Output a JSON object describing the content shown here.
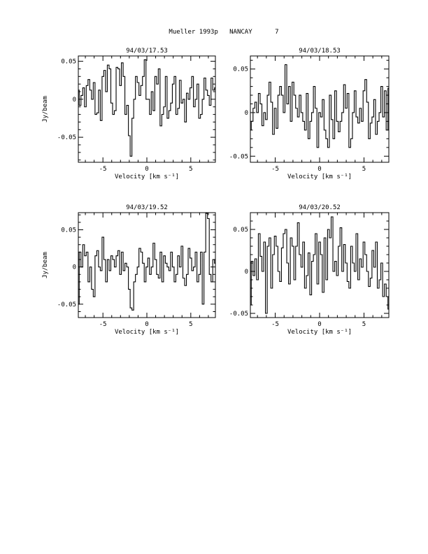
{
  "page_title": "Mueller 1993p   NANCAY      7",
  "chart_data": [
    {
      "type": "line",
      "title": "94/03/17.53",
      "xlabel": "Velocity [km s⁻¹]",
      "ylabel": "Jy/beam",
      "xlim": [
        -7.8,
        7.8
      ],
      "ylim": [
        -0.083,
        0.057
      ],
      "xticks": [
        -5,
        0,
        5
      ],
      "xtick_labels": [
        "-5",
        "0",
        "5"
      ],
      "yticks": [
        0.05,
        0,
        -0.05
      ],
      "ytick_labels": [
        "0.05",
        "0",
        "-0.05"
      ],
      "grid": false,
      "series": [
        {
          "x": [
            -7.8,
            -7.6,
            -7.4,
            -7.2,
            -7.0,
            -6.8,
            -6.6,
            -6.4,
            -6.2,
            -6.0,
            -5.8,
            -5.6,
            -5.4,
            -5.2,
            -5.0,
            -4.8,
            -4.6,
            -4.4,
            -4.2,
            -4.0,
            -3.8,
            -3.6,
            -3.4,
            -3.2,
            -3.0,
            -2.8,
            -2.6,
            -2.4,
            -2.2,
            -2.0,
            -1.8,
            -1.6,
            -1.4,
            -1.2,
            -1.0,
            -0.8,
            -0.6,
            -0.4,
            -0.2,
            0.0,
            0.2,
            0.4,
            0.6,
            0.8,
            1.0,
            1.2,
            1.4,
            1.6,
            1.8,
            2.0,
            2.2,
            2.4,
            2.6,
            2.8,
            3.0,
            3.2,
            3.4,
            3.6,
            3.8,
            4.0,
            4.2,
            4.4,
            4.6,
            4.8,
            5.0,
            5.2,
            5.4,
            5.6,
            5.8,
            6.0,
            6.2,
            6.4,
            6.6,
            6.8,
            7.0,
            7.2,
            7.4,
            7.6,
            7.8
          ],
          "values": [
            0.012,
            -0.008,
            0.005,
            0.015,
            -0.01,
            0.018,
            0.026,
            0.012,
            0.0,
            0.022,
            -0.02,
            -0.018,
            0.012,
            -0.028,
            0.03,
            0.038,
            0.01,
            0.045,
            0.04,
            -0.005,
            -0.02,
            -0.015,
            0.042,
            0.04,
            0.018,
            0.048,
            0.03,
            -0.02,
            -0.008,
            -0.048,
            -0.075,
            -0.025,
            0.0,
            0.03,
            0.022,
            0.005,
            0.018,
            0.03,
            0.052,
            0.0,
            0.0,
            -0.02,
            0.01,
            -0.015,
            0.03,
            0.02,
            0.04,
            -0.035,
            -0.02,
            -0.01,
            0.03,
            -0.025,
            -0.015,
            -0.005,
            0.02,
            0.03,
            -0.02,
            -0.012,
            0.025,
            -0.005,
            0.0,
            -0.03,
            0.008,
            0.0,
            0.015,
            0.03,
            -0.01,
            0.0,
            0.02,
            -0.025,
            -0.02,
            0.0,
            0.028,
            0.012,
            0.005,
            -0.008,
            0.028,
            0.012,
            0.015
          ]
        }
      ]
    },
    {
      "type": "line",
      "title": "94/03/18.53",
      "xlabel": "Velocity [km s⁻¹]",
      "ylabel": "",
      "xlim": [
        -7.8,
        7.8
      ],
      "ylim": [
        -0.057,
        0.065
      ],
      "xticks": [
        -5,
        0,
        5
      ],
      "xtick_labels": [
        "-5",
        "0",
        "5"
      ],
      "yticks": [
        0.05,
        0,
        -0.05
      ],
      "ytick_labels": [
        "0.05",
        "0",
        "-0.05"
      ],
      "grid": false,
      "series": [
        {
          "x": [
            -7.8,
            -7.6,
            -7.4,
            -7.2,
            -7.0,
            -6.8,
            -6.6,
            -6.4,
            -6.2,
            -6.0,
            -5.8,
            -5.6,
            -5.4,
            -5.2,
            -5.0,
            -4.8,
            -4.6,
            -4.4,
            -4.2,
            -4.0,
            -3.8,
            -3.6,
            -3.4,
            -3.2,
            -3.0,
            -2.8,
            -2.6,
            -2.4,
            -2.2,
            -2.0,
            -1.8,
            -1.6,
            -1.4,
            -1.2,
            -1.0,
            -0.8,
            -0.6,
            -0.4,
            -0.2,
            0.0,
            0.2,
            0.4,
            0.6,
            0.8,
            1.0,
            1.2,
            1.4,
            1.6,
            1.8,
            2.0,
            2.2,
            2.4,
            2.6,
            2.8,
            3.0,
            3.2,
            3.4,
            3.6,
            3.8,
            4.0,
            4.2,
            4.4,
            4.6,
            4.8,
            5.0,
            5.2,
            5.4,
            5.6,
            5.8,
            6.0,
            6.2,
            6.4,
            6.6,
            6.8,
            7.0,
            7.2,
            7.4,
            7.6,
            7.8
          ],
          "values": [
            -0.02,
            -0.01,
            0.005,
            0.012,
            0.0,
            0.022,
            0.01,
            -0.015,
            0.0,
            -0.008,
            0.02,
            0.035,
            0.012,
            -0.025,
            0.005,
            -0.018,
            0.02,
            0.03,
            0.02,
            0.0,
            0.055,
            0.01,
            0.03,
            -0.01,
            0.035,
            0.02,
            0.005,
            -0.005,
            0.02,
            0.0,
            -0.01,
            -0.02,
            0.022,
            -0.03,
            -0.01,
            0.0,
            0.03,
            0.005,
            -0.04,
            0.0,
            -0.005,
            0.015,
            -0.02,
            -0.03,
            -0.04,
            0.02,
            -0.008,
            -0.03,
            0.025,
            -0.01,
            -0.022,
            -0.01,
            0.0,
            0.032,
            0.005,
            0.022,
            -0.04,
            -0.03,
            0.0,
            0.025,
            -0.005,
            -0.012,
            0.005,
            -0.01,
            0.025,
            0.038,
            0.012,
            -0.03,
            -0.012,
            -0.005,
            0.015,
            -0.025,
            -0.01,
            0.0,
            0.03,
            -0.005,
            0.025,
            -0.02,
            0.028
          ]
        }
      ]
    },
    {
      "type": "line",
      "title": "94/03/19.52",
      "xlabel": "Velocity [km s⁻¹]",
      "ylabel": "Jy/beam",
      "xlim": [
        -7.8,
        7.8
      ],
      "ylim": [
        -0.068,
        0.073
      ],
      "xticks": [
        -5,
        0,
        5
      ],
      "xtick_labels": [
        "-5",
        "0",
        "5"
      ],
      "yticks": [
        0.05,
        0,
        -0.05
      ],
      "ytick_labels": [
        "0.05",
        "0",
        "-0.05"
      ],
      "grid": false,
      "series": [
        {
          "x": [
            -7.8,
            -7.6,
            -7.4,
            -7.2,
            -7.0,
            -6.8,
            -6.6,
            -6.4,
            -6.2,
            -6.0,
            -5.8,
            -5.6,
            -5.4,
            -5.2,
            -5.0,
            -4.8,
            -4.6,
            -4.4,
            -4.2,
            -4.0,
            -3.8,
            -3.6,
            -3.4,
            -3.2,
            -3.0,
            -2.8,
            -2.6,
            -2.4,
            -2.2,
            -2.0,
            -1.8,
            -1.6,
            -1.4,
            -1.2,
            -1.0,
            -0.8,
            -0.6,
            -0.4,
            -0.2,
            0.0,
            0.2,
            0.4,
            0.6,
            0.8,
            1.0,
            1.2,
            1.4,
            1.6,
            1.8,
            2.0,
            2.2,
            2.4,
            2.6,
            2.8,
            3.0,
            3.2,
            3.4,
            3.6,
            3.8,
            4.0,
            4.2,
            4.4,
            4.6,
            4.8,
            5.0,
            5.2,
            5.4,
            5.6,
            5.8,
            6.0,
            6.2,
            6.4,
            6.6,
            6.8,
            7.0,
            7.2,
            7.4,
            7.6,
            7.8
          ],
          "values": [
            -0.05,
            0.02,
            0.0,
            0.03,
            0.015,
            0.02,
            -0.02,
            0.0,
            -0.03,
            -0.04,
            0.015,
            0.022,
            0.0,
            -0.005,
            0.04,
            0.01,
            -0.02,
            0.01,
            -0.005,
            0.015,
            0.01,
            0.0,
            0.015,
            0.022,
            -0.01,
            0.02,
            -0.005,
            0.005,
            0.0,
            -0.03,
            -0.055,
            -0.058,
            -0.02,
            -0.01,
            0.0,
            0.025,
            0.02,
            0.005,
            -0.02,
            0.0,
            0.012,
            -0.01,
            0.0,
            0.032,
            0.01,
            -0.01,
            -0.015,
            0.02,
            -0.02,
            0.015,
            0.005,
            0.0,
            -0.005,
            0.02,
            0.0,
            -0.02,
            -0.01,
            0.015,
            0.0,
            0.028,
            -0.015,
            -0.025,
            -0.01,
            0.025,
            0.012,
            -0.005,
            0.0,
            0.02,
            -0.02,
            -0.01,
            0.02,
            -0.05,
            0.02,
            0.072,
            0.065,
            -0.01,
            -0.02,
            0.01,
            0.005
          ]
        }
      ]
    },
    {
      "type": "line",
      "title": "94/03/20.52",
      "xlabel": "Velocity [km s⁻¹]",
      "ylabel": "",
      "xlim": [
        -7.8,
        7.8
      ],
      "ylim": [
        -0.055,
        0.07
      ],
      "xticks": [
        -5,
        0,
        5
      ],
      "xtick_labels": [
        "-5",
        "0",
        "5"
      ],
      "yticks": [
        0.05,
        0,
        -0.05
      ],
      "ytick_labels": [
        "0.05",
        "0",
        "-0.05"
      ],
      "grid": false,
      "series": [
        {
          "x": [
            -7.8,
            -7.6,
            -7.4,
            -7.2,
            -7.0,
            -6.8,
            -6.6,
            -6.4,
            -6.2,
            -6.0,
            -5.8,
            -5.6,
            -5.4,
            -5.2,
            -5.0,
            -4.8,
            -4.6,
            -4.4,
            -4.2,
            -4.0,
            -3.8,
            -3.6,
            -3.4,
            -3.2,
            -3.0,
            -2.8,
            -2.6,
            -2.4,
            -2.2,
            -2.0,
            -1.8,
            -1.6,
            -1.4,
            -1.2,
            -1.0,
            -0.8,
            -0.6,
            -0.4,
            -0.2,
            0.0,
            0.2,
            0.4,
            0.6,
            0.8,
            1.0,
            1.2,
            1.4,
            1.6,
            1.8,
            2.0,
            2.2,
            2.4,
            2.6,
            2.8,
            3.0,
            3.2,
            3.4,
            3.6,
            3.8,
            4.0,
            4.2,
            4.4,
            4.6,
            4.8,
            5.0,
            5.2,
            5.4,
            5.6,
            5.8,
            6.0,
            6.2,
            6.4,
            6.6,
            6.8,
            7.0,
            7.2,
            7.4,
            7.6,
            7.8
          ],
          "values": [
            -0.04,
            0.012,
            -0.005,
            0.015,
            -0.01,
            0.045,
            0.018,
            0.0,
            0.035,
            -0.05,
            0.03,
            0.04,
            -0.02,
            0.02,
            0.042,
            0.03,
            0.0,
            -0.012,
            0.028,
            0.045,
            0.05,
            0.01,
            -0.015,
            0.04,
            0.03,
            -0.01,
            0.03,
            0.058,
            0.02,
            0.005,
            0.035,
            -0.02,
            -0.005,
            0.022,
            -0.028,
            0.012,
            0.02,
            0.045,
            -0.015,
            0.035,
            0.02,
            -0.025,
            0.04,
            -0.01,
            0.05,
            0.04,
            0.065,
            0.0,
            0.012,
            -0.005,
            0.03,
            0.052,
            0.0,
            0.032,
            0.01,
            -0.012,
            -0.02,
            0.03,
            0.01,
            0.0,
            0.045,
            -0.01,
            0.015,
            0.005,
            0.035,
            0.02,
            0.0,
            -0.018,
            -0.008,
            0.025,
            0.005,
            0.035,
            -0.02,
            -0.01,
            0.01,
            -0.03,
            -0.015,
            -0.03,
            -0.045
          ]
        }
      ]
    }
  ]
}
